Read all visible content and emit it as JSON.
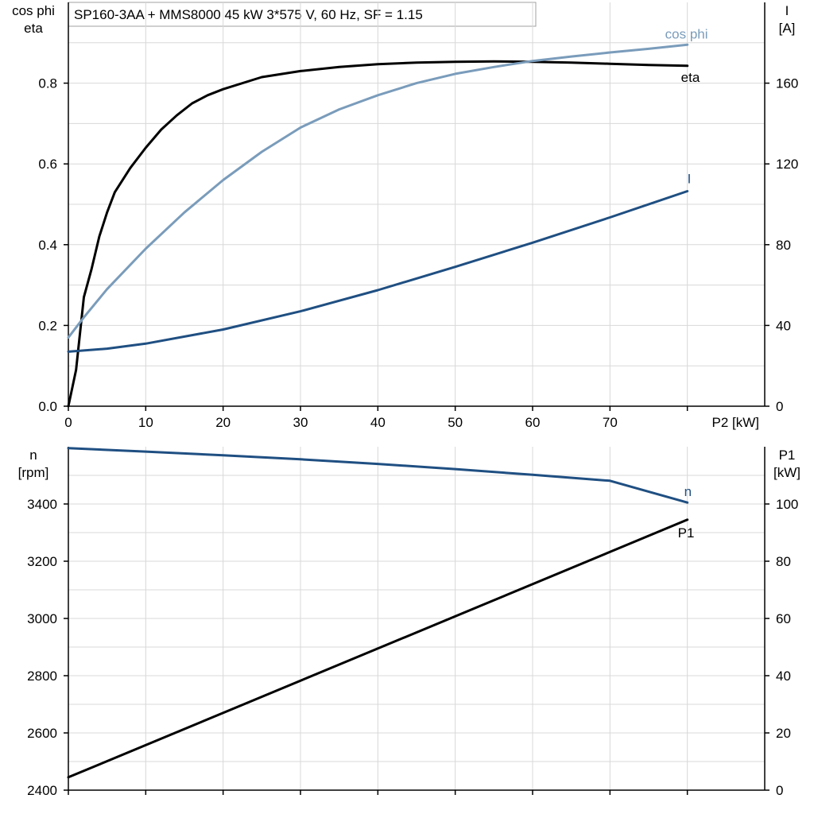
{
  "title": "SP160-3AA + MMS8000   45 kW   3*575 V, 60 Hz, SF = 1.15",
  "chart_data": [
    {
      "type": "line",
      "x_label": "P2 [kW]",
      "x_ticks": [
        "0",
        "10",
        "20",
        "30",
        "40",
        "50",
        "60",
        "70"
      ],
      "xlim": [
        0,
        90
      ],
      "grid": true,
      "left_axis": {
        "label_lines": [
          "cos phi",
          "eta"
        ],
        "lim": [
          0,
          1.0
        ],
        "ticks": [
          "0.0",
          "0.2",
          "0.4",
          "0.6",
          "0.8"
        ],
        "tick_values": [
          0,
          0.2,
          0.4,
          0.6,
          0.8
        ]
      },
      "right_axis": {
        "label_lines": [
          "I",
          "[A]"
        ],
        "lim": [
          0,
          200
        ],
        "ticks": [
          "0",
          "40",
          "80",
          "120",
          "160"
        ],
        "tick_values": [
          0,
          40,
          80,
          120,
          160
        ]
      },
      "series": [
        {
          "name": "eta",
          "axis": "left",
          "color": "#000000",
          "points": [
            [
              0,
              0.0
            ],
            [
              1,
              0.09
            ],
            [
              2,
              0.27
            ],
            [
              3,
              0.34
            ],
            [
              4,
              0.42
            ],
            [
              5,
              0.48
            ],
            [
              6,
              0.53
            ],
            [
              8,
              0.59
            ],
            [
              10,
              0.64
            ],
            [
              12,
              0.685
            ],
            [
              14,
              0.72
            ],
            [
              16,
              0.75
            ],
            [
              18,
              0.77
            ],
            [
              20,
              0.785
            ],
            [
              25,
              0.815
            ],
            [
              30,
              0.83
            ],
            [
              35,
              0.84
            ],
            [
              40,
              0.847
            ],
            [
              45,
              0.851
            ],
            [
              50,
              0.853
            ],
            [
              55,
              0.854
            ],
            [
              60,
              0.853
            ],
            [
              65,
              0.851
            ],
            [
              70,
              0.848
            ],
            [
              75,
              0.845
            ],
            [
              80,
              0.843
            ]
          ]
        },
        {
          "name": "cos phi",
          "axis": "left",
          "color": "#7a9cbb",
          "points": [
            [
              0,
              0.17
            ],
            [
              2,
              0.22
            ],
            [
              5,
              0.29
            ],
            [
              10,
              0.39
            ],
            [
              15,
              0.48
            ],
            [
              20,
              0.56
            ],
            [
              25,
              0.63
            ],
            [
              30,
              0.69
            ],
            [
              35,
              0.735
            ],
            [
              40,
              0.77
            ],
            [
              45,
              0.8
            ],
            [
              50,
              0.823
            ],
            [
              55,
              0.84
            ],
            [
              60,
              0.855
            ],
            [
              65,
              0.866
            ],
            [
              70,
              0.876
            ],
            [
              75,
              0.885
            ],
            [
              80,
              0.895
            ]
          ]
        },
        {
          "name": "I",
          "axis": "right",
          "color": "#1f4f82",
          "points": [
            [
              0,
              27
            ],
            [
              5,
              28.5
            ],
            [
              10,
              31
            ],
            [
              20,
              38
            ],
            [
              30,
              47
            ],
            [
              40,
              57.5
            ],
            [
              50,
              69
            ],
            [
              60,
              81
            ],
            [
              70,
              93.5
            ],
            [
              80,
              106.5
            ]
          ]
        }
      ]
    },
    {
      "type": "line",
      "x_ticks": [],
      "xlim": [
        0,
        90
      ],
      "grid": true,
      "left_axis": {
        "label_lines": [
          "n",
          "[rpm]"
        ],
        "lim": [
          2400,
          3600
        ],
        "ticks": [
          "2400",
          "2600",
          "2800",
          "3000",
          "3200",
          "3400"
        ],
        "tick_values": [
          2400,
          2600,
          2800,
          3000,
          3200,
          3400
        ]
      },
      "right_axis": {
        "label_lines": [
          "P1",
          "[kW]"
        ],
        "lim": [
          0,
          120
        ],
        "ticks": [
          "0",
          "20",
          "40",
          "60",
          "80",
          "100"
        ],
        "tick_values": [
          0,
          20,
          40,
          60,
          80,
          100
        ]
      },
      "series": [
        {
          "name": "n",
          "axis": "left",
          "color": "#1f4f82",
          "points": [
            [
              0,
              3595
            ],
            [
              10,
              3583
            ],
            [
              20,
              3570
            ],
            [
              30,
              3556
            ],
            [
              40,
              3540
            ],
            [
              50,
              3522
            ],
            [
              60,
              3502
            ],
            [
              70,
              3481
            ],
            [
              80,
              3405
            ]
          ]
        },
        {
          "name": "P1",
          "axis": "right",
          "color": "#000000",
          "points": [
            [
              0,
              4.5
            ],
            [
              80,
              94.5
            ]
          ]
        }
      ]
    }
  ]
}
